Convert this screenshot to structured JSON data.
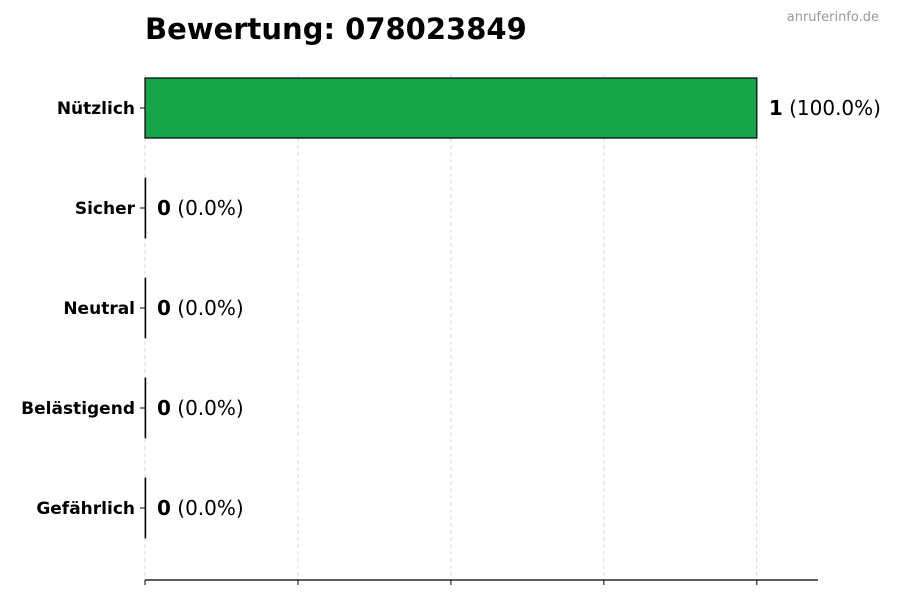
{
  "chart_data": {
    "type": "bar",
    "orientation": "horizontal",
    "title": "Bewertung: 078023849",
    "categories": [
      "Nützlich",
      "Sicher",
      "Neutral",
      "Belästigend",
      "Gefährlich"
    ],
    "values": [
      1,
      0,
      0,
      0,
      0
    ],
    "percent_labels": [
      "(100.0%)",
      "(0.0%)",
      "(0.0%)",
      "(0.0%)",
      "(0.0%)"
    ],
    "colors": [
      "#17a54a",
      "#17a54a",
      "#17a54a",
      "#17a54a",
      "#17a54a"
    ],
    "xlabel": "",
    "ylabel": "",
    "xlim": [
      0,
      1.1
    ],
    "xgrid_ticks": [
      0,
      0.25,
      0.5,
      0.75,
      1
    ],
    "grid": "vertical dashed",
    "x_tick_labels_shown": false
  },
  "watermark": "anruferinfo.de"
}
